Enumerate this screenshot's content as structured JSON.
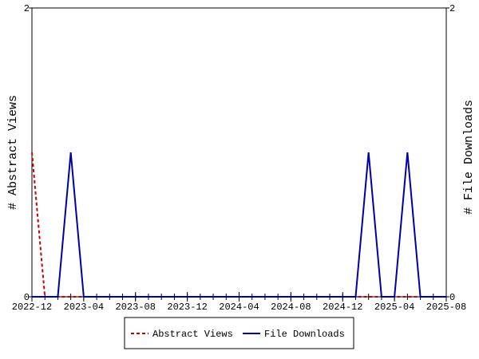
{
  "chart_data": {
    "type": "line",
    "x": [
      "2022-12",
      "2023-01",
      "2023-02",
      "2023-03",
      "2023-04",
      "2023-05",
      "2023-06",
      "2023-07",
      "2023-08",
      "2023-09",
      "2023-10",
      "2023-11",
      "2023-12",
      "2024-01",
      "2024-02",
      "2024-03",
      "2024-04",
      "2024-05",
      "2024-06",
      "2024-07",
      "2024-08",
      "2024-09",
      "2024-10",
      "2024-11",
      "2024-12",
      "2025-01",
      "2025-02",
      "2025-03",
      "2025-04",
      "2025-05",
      "2025-06",
      "2025-07",
      "2025-08"
    ],
    "xticks": [
      "2022-12",
      "2023-04",
      "2023-08",
      "2023-12",
      "2024-04",
      "2024-08",
      "2024-12",
      "2025-04",
      "2025-08"
    ],
    "ylabel": "# Abstract Views",
    "y2label": "# File Downloads",
    "ylim": [
      0,
      2
    ],
    "yticks": [
      0,
      2
    ],
    "y2lim": [
      0,
      2
    ],
    "y2ticks": [
      0,
      2
    ],
    "legend": "bottom",
    "series": [
      {
        "name": "Abstract Views",
        "color": "#cc0000",
        "dash": true,
        "values": [
          1,
          0,
          0,
          0,
          0,
          0,
          0,
          0,
          0,
          0,
          0,
          0,
          0,
          0,
          0,
          0,
          0,
          0,
          0,
          0,
          0,
          0,
          0,
          0,
          0,
          0,
          0,
          0,
          0,
          0,
          0,
          0,
          0
        ]
      },
      {
        "name": "File Downloads",
        "color": "#0000aa",
        "axis": "y2",
        "values": [
          0,
          0,
          0,
          1,
          0,
          0,
          0,
          0,
          0,
          0,
          0,
          0,
          0,
          0,
          0,
          0,
          0,
          0,
          0,
          0,
          0,
          0,
          0,
          0,
          0,
          0,
          1,
          0,
          0,
          1,
          0,
          0,
          0
        ]
      }
    ]
  }
}
